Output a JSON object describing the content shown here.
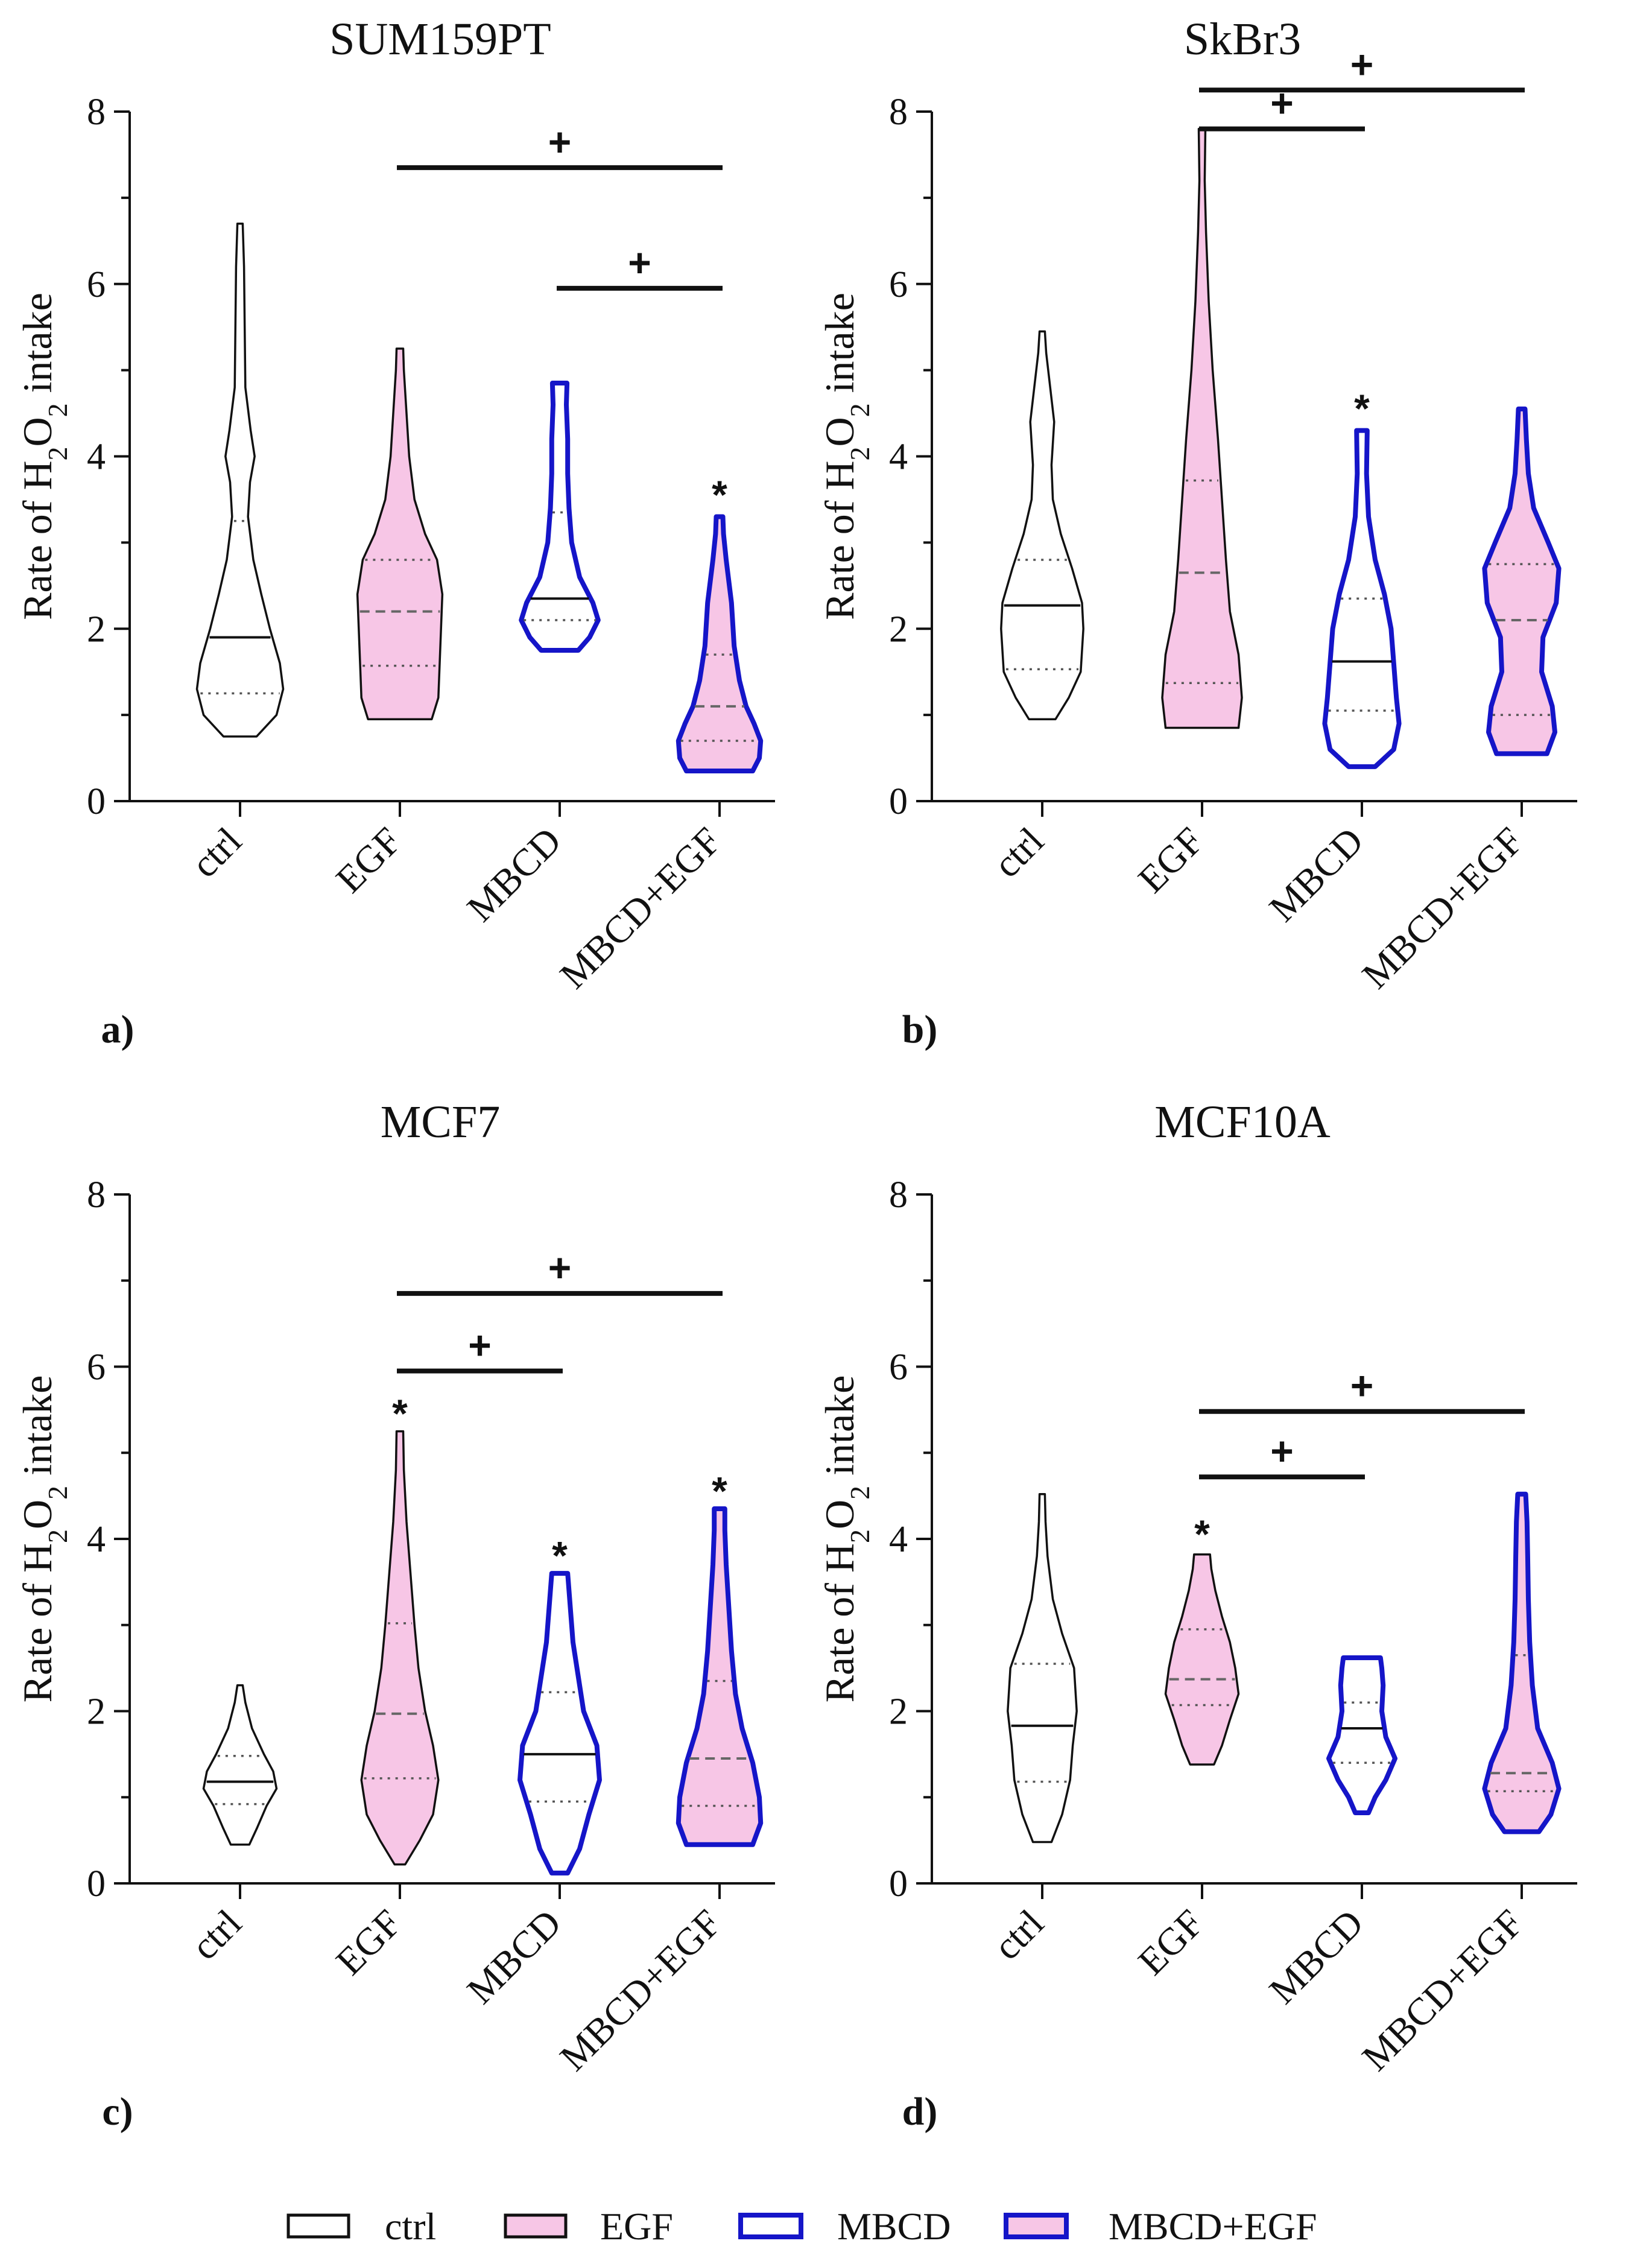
{
  "colors": {
    "ctrl_fill": "#ffffff",
    "ctrl_stroke": "#111111",
    "egf_fill": "#f7c6e6",
    "egf_stroke": "#111111",
    "mbcd_fill": "#ffffff",
    "mbcd_stroke": "#1515c8",
    "combo_fill": "#f7c6e6",
    "combo_stroke": "#1515c8",
    "axis": "#111111",
    "median": "#111111",
    "quartile": "#555555"
  },
  "legend": {
    "items": [
      {
        "key": "ctrl",
        "label": "ctrl"
      },
      {
        "key": "egf",
        "label": "EGF"
      },
      {
        "key": "mbcd",
        "label": "MBCD"
      },
      {
        "key": "combo",
        "label": "MBCD+EGF"
      }
    ]
  },
  "chart_data": [
    {
      "type": "violin",
      "panel_label": "a)",
      "title": "SUM159PT",
      "ylabel": {
        "prefix": "Rate of H",
        "sub1": "2",
        "mid": "O",
        "sub2": "2",
        "suffix": " intake"
      },
      "ylim": [
        0,
        8
      ],
      "yticks": [
        0,
        2,
        4,
        6,
        8
      ],
      "categories": [
        "ctrl",
        "EGF",
        "MBCD",
        "MBCD+EGF"
      ],
      "series": [
        {
          "key": "ctrl",
          "min": 0.75,
          "max": 6.7,
          "median": 1.9,
          "q1": 1.25,
          "q3": 3.25,
          "median_dashed": false,
          "shape": [
            [
              0.75,
              0.25
            ],
            [
              1.0,
              0.55
            ],
            [
              1.3,
              0.65
            ],
            [
              1.6,
              0.6
            ],
            [
              2.0,
              0.45
            ],
            [
              2.4,
              0.32
            ],
            [
              2.8,
              0.2
            ],
            [
              3.3,
              0.12
            ],
            [
              3.7,
              0.15
            ],
            [
              4.0,
              0.22
            ],
            [
              4.3,
              0.16
            ],
            [
              4.8,
              0.08
            ],
            [
              5.5,
              0.07
            ],
            [
              6.2,
              0.06
            ],
            [
              6.7,
              0.04
            ]
          ]
        },
        {
          "key": "egf",
          "min": 0.95,
          "max": 5.25,
          "median": 2.2,
          "q1": 1.57,
          "q3": 2.8,
          "median_dashed": true,
          "shape": [
            [
              0.95,
              0.48
            ],
            [
              1.2,
              0.58
            ],
            [
              1.6,
              0.6
            ],
            [
              2.0,
              0.62
            ],
            [
              2.4,
              0.64
            ],
            [
              2.8,
              0.56
            ],
            [
              3.1,
              0.38
            ],
            [
              3.5,
              0.22
            ],
            [
              4.0,
              0.14
            ],
            [
              4.5,
              0.1
            ],
            [
              5.0,
              0.06
            ],
            [
              5.25,
              0.05
            ]
          ]
        },
        {
          "key": "mbcd",
          "min": 1.75,
          "max": 4.85,
          "median": 2.35,
          "q1": 2.1,
          "q3": 3.35,
          "median_dashed": false,
          "shape": [
            [
              1.75,
              0.28
            ],
            [
              1.9,
              0.45
            ],
            [
              2.1,
              0.58
            ],
            [
              2.3,
              0.5
            ],
            [
              2.6,
              0.3
            ],
            [
              3.0,
              0.18
            ],
            [
              3.4,
              0.14
            ],
            [
              3.8,
              0.12
            ],
            [
              4.2,
              0.12
            ],
            [
              4.6,
              0.1
            ],
            [
              4.85,
              0.11
            ]
          ]
        },
        {
          "key": "combo",
          "min": 0.35,
          "max": 3.3,
          "median": 1.1,
          "q1": 0.7,
          "q3": 1.7,
          "median_dashed": true,
          "shape": [
            [
              0.35,
              0.5
            ],
            [
              0.5,
              0.6
            ],
            [
              0.7,
              0.62
            ],
            [
              0.9,
              0.52
            ],
            [
              1.1,
              0.4
            ],
            [
              1.4,
              0.3
            ],
            [
              1.8,
              0.22
            ],
            [
              2.3,
              0.18
            ],
            [
              2.8,
              0.1
            ],
            [
              3.1,
              0.06
            ],
            [
              3.3,
              0.05
            ]
          ]
        }
      ],
      "significance": [
        {
          "symbol": "+",
          "from": 1,
          "to": 3,
          "y": 7.35
        },
        {
          "symbol": "+",
          "from": 2,
          "to": 3,
          "y": 5.95
        }
      ],
      "stars": [
        {
          "symbol": "*",
          "category": 3,
          "y": 3.55
        }
      ]
    },
    {
      "type": "violin",
      "panel_label": "b)",
      "title": "SkBr3",
      "ylabel": {
        "prefix": "Rate of H",
        "sub1": "2",
        "mid": "O",
        "sub2": "2",
        "suffix": " intake"
      },
      "ylim": [
        0,
        8
      ],
      "yticks": [
        0,
        2,
        4,
        6,
        8
      ],
      "categories": [
        "ctrl",
        "EGF",
        "MBCD",
        "MBCD+EGF"
      ],
      "series": [
        {
          "key": "ctrl",
          "min": 0.95,
          "max": 5.45,
          "median": 2.27,
          "q1": 1.53,
          "q3": 2.8,
          "median_dashed": false,
          "shape": [
            [
              0.95,
              0.2
            ],
            [
              1.2,
              0.4
            ],
            [
              1.5,
              0.58
            ],
            [
              2.0,
              0.62
            ],
            [
              2.3,
              0.6
            ],
            [
              2.7,
              0.45
            ],
            [
              3.1,
              0.28
            ],
            [
              3.5,
              0.16
            ],
            [
              3.9,
              0.14
            ],
            [
              4.4,
              0.18
            ],
            [
              4.8,
              0.12
            ],
            [
              5.2,
              0.06
            ],
            [
              5.45,
              0.04
            ]
          ]
        },
        {
          "key": "egf",
          "min": 0.85,
          "max": 7.8,
          "median": 2.65,
          "q1": 1.37,
          "q3": 3.72,
          "median_dashed": true,
          "shape": [
            [
              0.85,
              0.55
            ],
            [
              1.2,
              0.6
            ],
            [
              1.7,
              0.55
            ],
            [
              2.2,
              0.42
            ],
            [
              2.8,
              0.36
            ],
            [
              3.5,
              0.3
            ],
            [
              4.2,
              0.24
            ],
            [
              5.0,
              0.16
            ],
            [
              5.8,
              0.1
            ],
            [
              6.6,
              0.06
            ],
            [
              7.2,
              0.04
            ],
            [
              7.8,
              0.05
            ]
          ]
        },
        {
          "key": "mbcd",
          "min": 0.4,
          "max": 4.3,
          "median": 1.62,
          "q1": 1.05,
          "q3": 2.35,
          "median_dashed": false,
          "shape": [
            [
              0.4,
              0.2
            ],
            [
              0.6,
              0.48
            ],
            [
              0.9,
              0.56
            ],
            [
              1.2,
              0.52
            ],
            [
              1.6,
              0.48
            ],
            [
              2.0,
              0.44
            ],
            [
              2.4,
              0.34
            ],
            [
              2.8,
              0.2
            ],
            [
              3.3,
              0.1
            ],
            [
              3.8,
              0.07
            ],
            [
              4.3,
              0.08
            ]
          ]
        },
        {
          "key": "combo",
          "min": 0.55,
          "max": 4.55,
          "median": 2.1,
          "q1": 1.0,
          "q3": 2.75,
          "median_dashed": true,
          "shape": [
            [
              0.55,
              0.38
            ],
            [
              0.8,
              0.5
            ],
            [
              1.1,
              0.46
            ],
            [
              1.5,
              0.3
            ],
            [
              1.9,
              0.32
            ],
            [
              2.3,
              0.52
            ],
            [
              2.7,
              0.56
            ],
            [
              3.0,
              0.4
            ],
            [
              3.4,
              0.18
            ],
            [
              3.8,
              0.1
            ],
            [
              4.2,
              0.07
            ],
            [
              4.55,
              0.05
            ]
          ]
        }
      ],
      "significance": [
        {
          "symbol": "+",
          "from": 1,
          "to": 3,
          "y": 8.25
        },
        {
          "symbol": "+",
          "from": 1,
          "to": 2,
          "y": 7.8
        }
      ],
      "stars": [
        {
          "symbol": "*",
          "category": 2,
          "y": 4.55
        }
      ]
    },
    {
      "type": "violin",
      "panel_label": "c)",
      "title": "MCF7",
      "ylabel": {
        "prefix": "Rate of H",
        "sub1": "2",
        "mid": "O",
        "sub2": "2",
        "suffix": " intake"
      },
      "ylim": [
        0,
        8
      ],
      "yticks": [
        0,
        2,
        4,
        6,
        8
      ],
      "categories": [
        "ctrl",
        "EGF",
        "MBCD",
        "MBCD+EGF"
      ],
      "series": [
        {
          "key": "ctrl",
          "min": 0.45,
          "max": 2.3,
          "median": 1.18,
          "q1": 0.92,
          "q3": 1.48,
          "median_dashed": false,
          "shape": [
            [
              0.45,
              0.14
            ],
            [
              0.65,
              0.26
            ],
            [
              0.9,
              0.4
            ],
            [
              1.1,
              0.55
            ],
            [
              1.3,
              0.5
            ],
            [
              1.5,
              0.36
            ],
            [
              1.8,
              0.18
            ],
            [
              2.1,
              0.08
            ],
            [
              2.3,
              0.04
            ]
          ]
        },
        {
          "key": "egf",
          "min": 0.22,
          "max": 5.25,
          "median": 1.97,
          "q1": 1.22,
          "q3": 3.02,
          "median_dashed": true,
          "shape": [
            [
              0.22,
              0.08
            ],
            [
              0.5,
              0.3
            ],
            [
              0.8,
              0.5
            ],
            [
              1.2,
              0.58
            ],
            [
              1.6,
              0.5
            ],
            [
              2.0,
              0.38
            ],
            [
              2.5,
              0.28
            ],
            [
              3.0,
              0.22
            ],
            [
              3.6,
              0.16
            ],
            [
              4.2,
              0.1
            ],
            [
              4.8,
              0.06
            ],
            [
              5.25,
              0.05
            ]
          ]
        },
        {
          "key": "mbcd",
          "min": 0.12,
          "max": 3.6,
          "median": 1.5,
          "q1": 0.95,
          "q3": 2.22,
          "median_dashed": false,
          "shape": [
            [
              0.12,
              0.12
            ],
            [
              0.4,
              0.3
            ],
            [
              0.8,
              0.44
            ],
            [
              1.2,
              0.6
            ],
            [
              1.6,
              0.56
            ],
            [
              2.0,
              0.36
            ],
            [
              2.4,
              0.28
            ],
            [
              2.8,
              0.2
            ],
            [
              3.2,
              0.16
            ],
            [
              3.6,
              0.12
            ]
          ]
        },
        {
          "key": "combo",
          "min": 0.45,
          "max": 4.35,
          "median": 1.45,
          "q1": 0.9,
          "q3": 2.35,
          "median_dashed": true,
          "shape": [
            [
              0.45,
              0.5
            ],
            [
              0.7,
              0.62
            ],
            [
              1.0,
              0.6
            ],
            [
              1.4,
              0.5
            ],
            [
              1.8,
              0.34
            ],
            [
              2.2,
              0.24
            ],
            [
              2.7,
              0.18
            ],
            [
              3.2,
              0.14
            ],
            [
              3.7,
              0.1
            ],
            [
              4.1,
              0.08
            ],
            [
              4.35,
              0.08
            ]
          ]
        }
      ],
      "significance": [
        {
          "symbol": "+",
          "from": 1,
          "to": 3,
          "y": 6.85
        },
        {
          "symbol": "+",
          "from": 1,
          "to": 2,
          "y": 5.95
        }
      ],
      "stars": [
        {
          "symbol": "*",
          "category": 1,
          "y": 5.45
        },
        {
          "symbol": "*",
          "category": 2,
          "y": 3.8
        },
        {
          "symbol": "*",
          "category": 3,
          "y": 4.55
        }
      ]
    },
    {
      "type": "violin",
      "panel_label": "d)",
      "title": "MCF10A",
      "ylabel": {
        "prefix": "Rate of H",
        "sub1": "2",
        "mid": "O",
        "sub2": "2",
        "suffix": " intake"
      },
      "ylim": [
        0,
        8
      ],
      "yticks": [
        0,
        2,
        4,
        6,
        8
      ],
      "categories": [
        "ctrl",
        "EGF",
        "MBCD",
        "MBCD+EGF"
      ],
      "series": [
        {
          "key": "ctrl",
          "min": 0.48,
          "max": 4.52,
          "median": 1.83,
          "q1": 1.18,
          "q3": 2.55,
          "median_dashed": false,
          "shape": [
            [
              0.48,
              0.14
            ],
            [
              0.8,
              0.3
            ],
            [
              1.2,
              0.42
            ],
            [
              1.6,
              0.46
            ],
            [
              2.0,
              0.52
            ],
            [
              2.5,
              0.48
            ],
            [
              2.9,
              0.3
            ],
            [
              3.3,
              0.16
            ],
            [
              3.8,
              0.08
            ],
            [
              4.2,
              0.05
            ],
            [
              4.52,
              0.04
            ]
          ]
        },
        {
          "key": "egf",
          "min": 1.38,
          "max": 3.82,
          "median": 2.37,
          "q1": 2.07,
          "q3": 2.95,
          "median_dashed": true,
          "shape": [
            [
              1.38,
              0.18
            ],
            [
              1.6,
              0.3
            ],
            [
              1.9,
              0.42
            ],
            [
              2.2,
              0.55
            ],
            [
              2.5,
              0.5
            ],
            [
              2.8,
              0.42
            ],
            [
              3.1,
              0.3
            ],
            [
              3.4,
              0.2
            ],
            [
              3.65,
              0.14
            ],
            [
              3.82,
              0.12
            ]
          ]
        },
        {
          "key": "mbcd",
          "min": 0.82,
          "max": 2.62,
          "median": 1.8,
          "q1": 1.4,
          "q3": 2.1,
          "median_dashed": false,
          "shape": [
            [
              0.82,
              0.1
            ],
            [
              1.0,
              0.2
            ],
            [
              1.2,
              0.36
            ],
            [
              1.45,
              0.5
            ],
            [
              1.7,
              0.36
            ],
            [
              2.0,
              0.3
            ],
            [
              2.3,
              0.32
            ],
            [
              2.5,
              0.3
            ],
            [
              2.62,
              0.28
            ]
          ]
        },
        {
          "key": "combo",
          "min": 0.6,
          "max": 4.52,
          "median": 1.28,
          "q1": 1.07,
          "q3": 2.65,
          "median_dashed": true,
          "shape": [
            [
              0.6,
              0.26
            ],
            [
              0.8,
              0.44
            ],
            [
              1.1,
              0.56
            ],
            [
              1.4,
              0.46
            ],
            [
              1.8,
              0.24
            ],
            [
              2.3,
              0.16
            ],
            [
              2.8,
              0.12
            ],
            [
              3.3,
              0.1
            ],
            [
              3.8,
              0.09
            ],
            [
              4.2,
              0.08
            ],
            [
              4.52,
              0.06
            ]
          ]
        }
      ],
      "significance": [
        {
          "symbol": "+",
          "from": 1,
          "to": 3,
          "y": 5.48
        },
        {
          "symbol": "+",
          "from": 1,
          "to": 2,
          "y": 4.72
        }
      ],
      "stars": [
        {
          "symbol": "*",
          "category": 1,
          "y": 4.05
        }
      ]
    }
  ]
}
